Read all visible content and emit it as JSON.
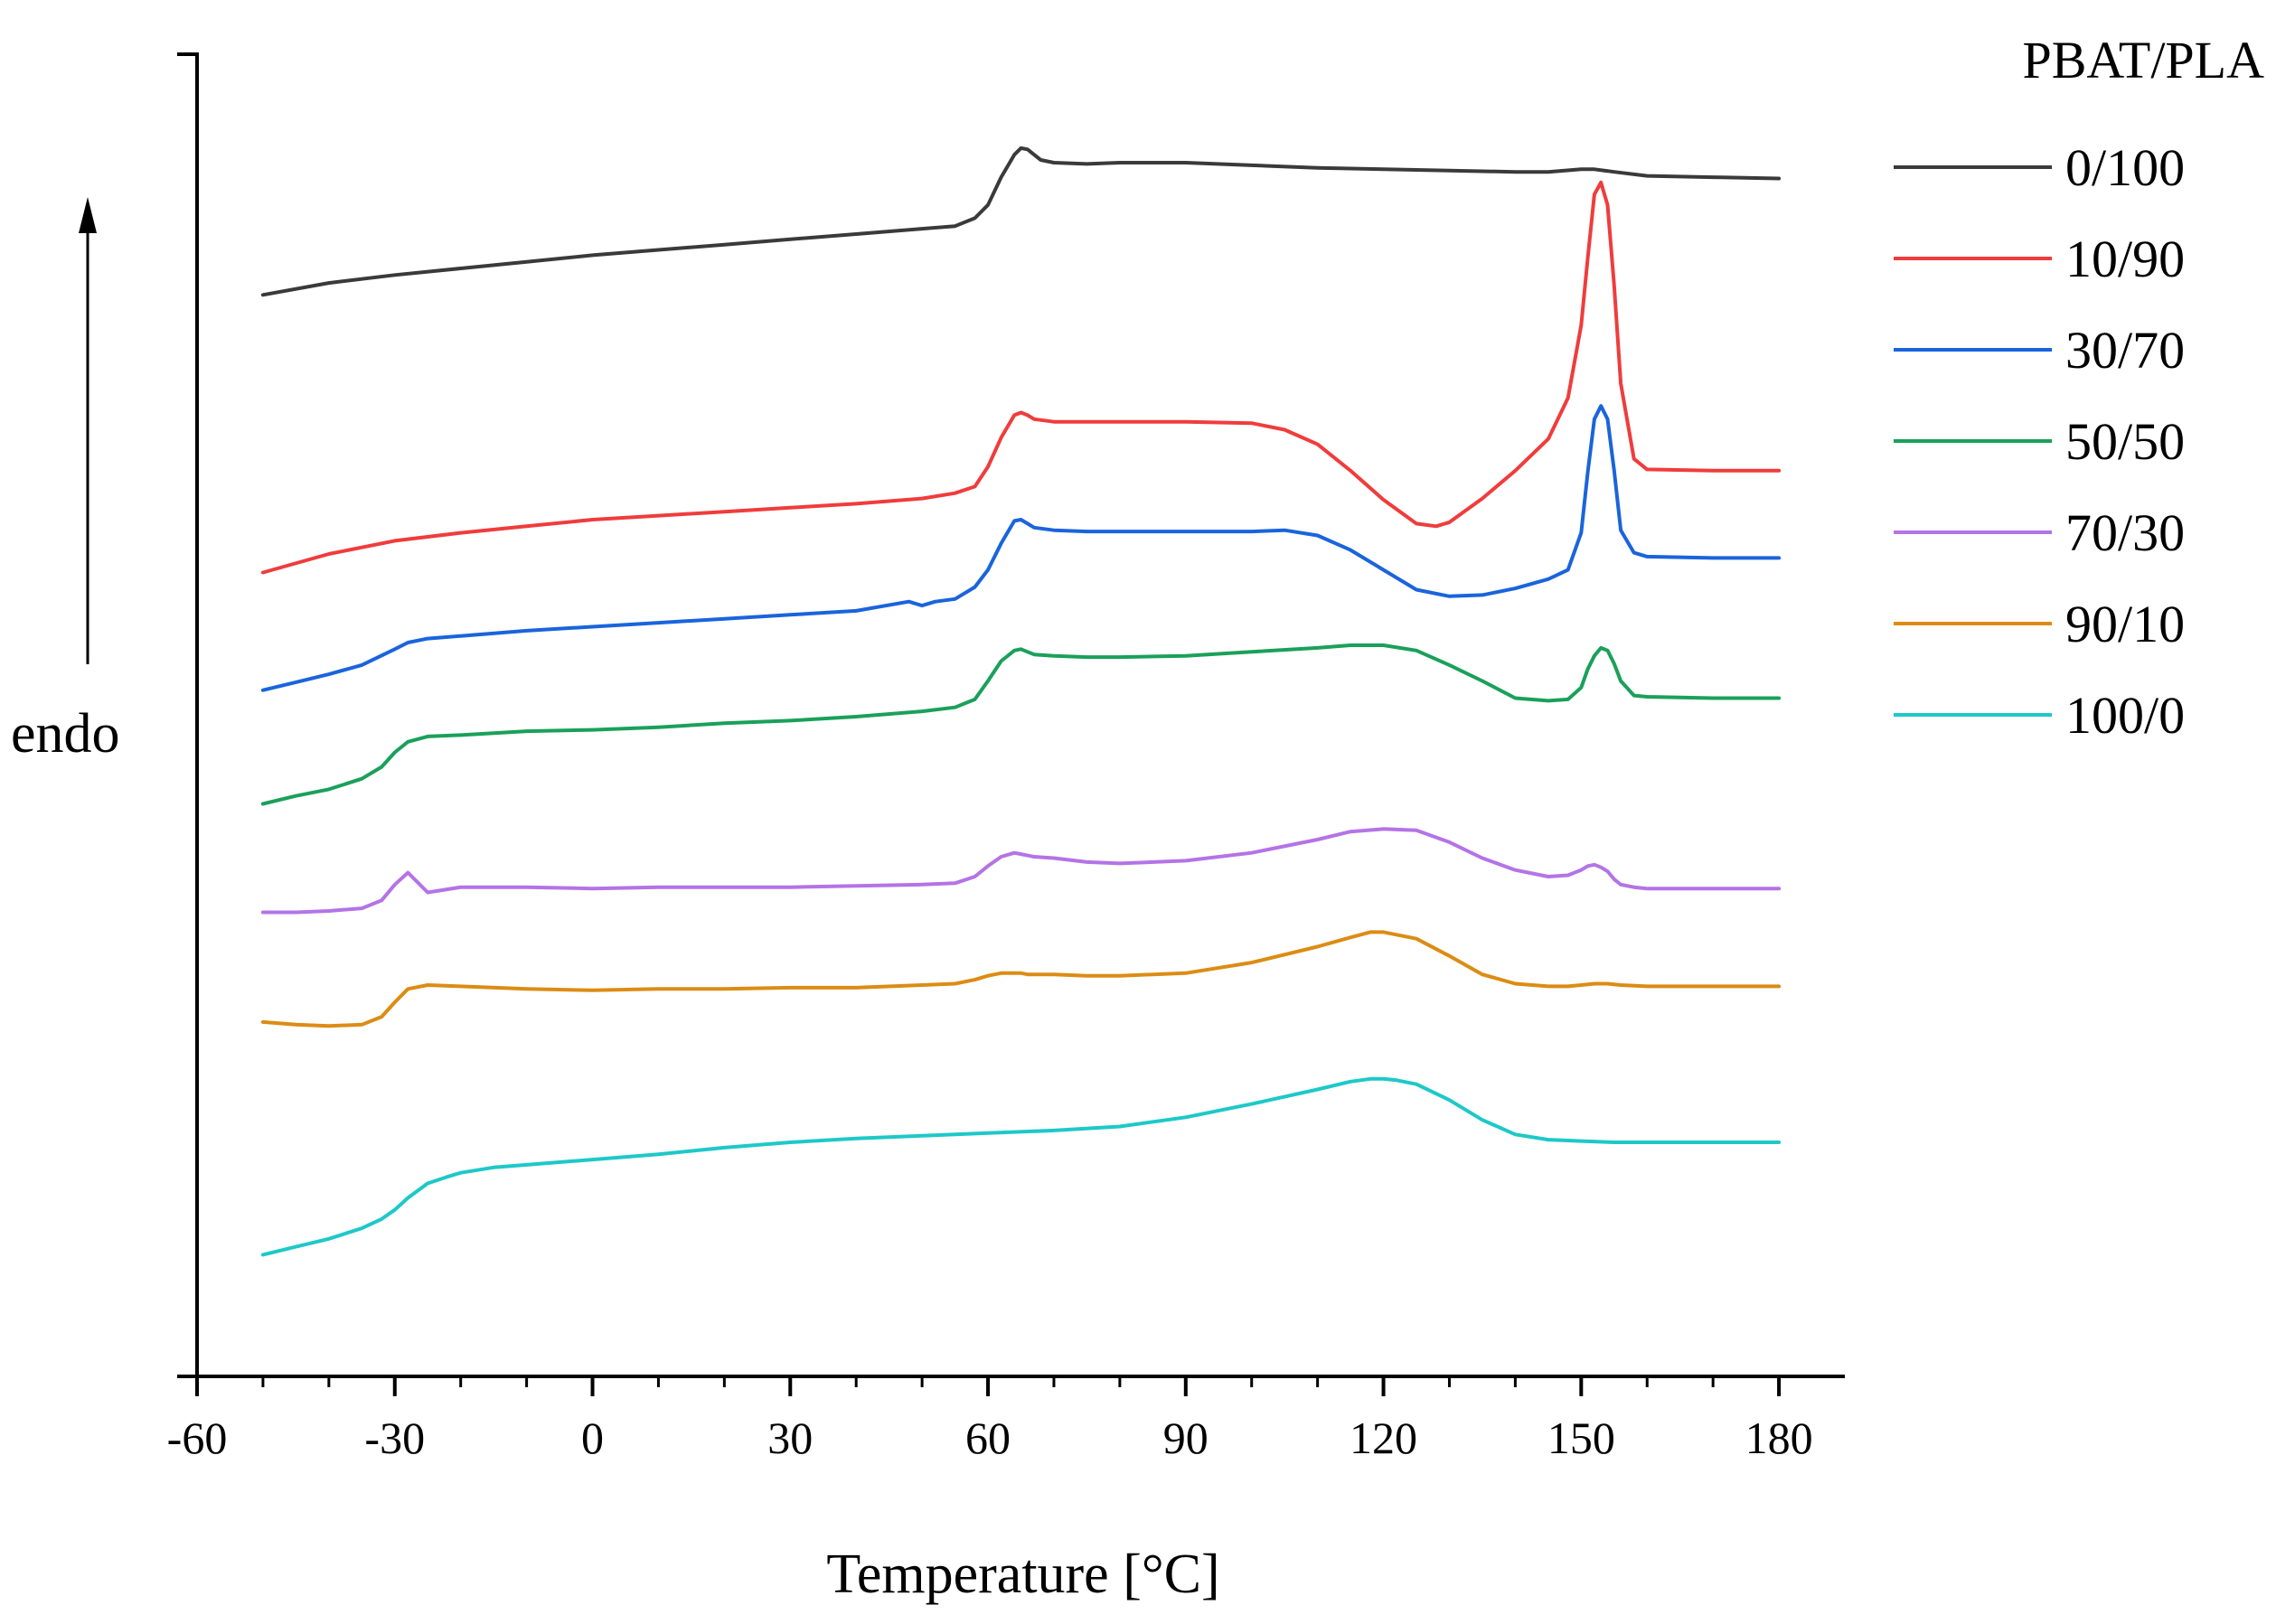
{
  "chart_data": {
    "type": "line",
    "title": "",
    "xlabel": "Temperature [°C]",
    "ylabel": "endo",
    "xlim": [
      -60,
      190
    ],
    "xticks": [
      -60,
      -30,
      0,
      30,
      60,
      90,
      120,
      150,
      180
    ],
    "ylim": [
      0,
      100
    ],
    "yticks_shown": false,
    "grid": false,
    "legend_title": "PBAT/PLA",
    "legend_position": "top-right",
    "series": [
      {
        "name": "0/100",
        "color": "#3a3a3a",
        "x": [
          -50,
          -40,
          -30,
          -20,
          -10,
          0,
          10,
          20,
          30,
          40,
          50,
          55,
          58,
          60,
          62,
          64,
          65,
          66,
          67,
          68,
          70,
          75,
          80,
          90,
          100,
          110,
          120,
          130,
          140,
          145,
          150,
          152,
          155,
          160,
          170,
          180
        ],
        "y": [
          81.8,
          82.7,
          83.3,
          83.8,
          84.3,
          84.8,
          85.2,
          85.6,
          86,
          86.4,
          86.8,
          87,
          87.6,
          88.6,
          90.7,
          92.4,
          92.9,
          92.8,
          92.4,
          92,
          91.8,
          91.7,
          91.8,
          91.8,
          91.6,
          91.4,
          91.3,
          91.2,
          91.1,
          91.1,
          91.3,
          91.3,
          91.1,
          90.8,
          90.7,
          90.6
        ]
      },
      {
        "name": "10/90",
        "color": "#f03c3c",
        "x": [
          -50,
          -40,
          -30,
          -20,
          -10,
          0,
          10,
          20,
          30,
          40,
          50,
          55,
          58,
          60,
          62,
          64,
          65,
          66,
          67,
          70,
          75,
          80,
          90,
          100,
          105,
          110,
          115,
          120,
          125,
          128,
          130,
          135,
          140,
          145,
          148,
          150,
          151,
          152,
          153,
          154,
          155,
          156,
          158,
          160,
          170,
          180
        ],
        "y": [
          60.8,
          62.2,
          63.2,
          63.8,
          64.3,
          64.8,
          65.1,
          65.4,
          65.7,
          66,
          66.4,
          66.8,
          67.3,
          68.8,
          71,
          72.7,
          72.9,
          72.7,
          72.4,
          72.2,
          72.2,
          72.2,
          72.2,
          72.1,
          71.6,
          70.5,
          68.5,
          66.3,
          64.5,
          64.3,
          64.6,
          66.4,
          68.5,
          70.9,
          74,
          79.5,
          84.6,
          89.4,
          90.3,
          88.6,
          82.5,
          75.1,
          69.4,
          68.6,
          68.5,
          68.5
        ]
      },
      {
        "name": "30/70",
        "color": "#1a64dc",
        "x": [
          -50,
          -45,
          -40,
          -35,
          -30,
          -28,
          -25,
          -20,
          -10,
          0,
          10,
          20,
          30,
          40,
          48,
          50,
          52,
          55,
          58,
          60,
          62,
          64,
          65,
          66,
          67,
          70,
          75,
          80,
          90,
          100,
          105,
          110,
          115,
          120,
          125,
          130,
          135,
          140,
          145,
          148,
          150,
          151,
          152,
          153,
          154,
          155,
          156,
          158,
          160,
          170,
          180
        ],
        "y": [
          51.9,
          52.5,
          53.1,
          53.8,
          55,
          55.5,
          55.8,
          56,
          56.4,
          56.7,
          57,
          57.3,
          57.6,
          57.9,
          58.6,
          58.3,
          58.6,
          58.8,
          59.7,
          61,
          63,
          64.7,
          64.8,
          64.5,
          64.2,
          64,
          63.9,
          63.9,
          63.9,
          63.9,
          64,
          63.6,
          62.5,
          61,
          59.5,
          59,
          59.1,
          59.6,
          60.3,
          61,
          63.8,
          68.4,
          72.4,
          73.4,
          72.4,
          68.5,
          64,
          62.3,
          62,
          61.9,
          61.9
        ]
      },
      {
        "name": "50/50",
        "color": "#1aa05a",
        "x": [
          -50,
          -45,
          -40,
          -35,
          -32,
          -30,
          -28,
          -25,
          -20,
          -10,
          0,
          10,
          20,
          30,
          40,
          50,
          55,
          58,
          60,
          62,
          64,
          65,
          66,
          67,
          70,
          75,
          80,
          90,
          100,
          110,
          115,
          120,
          125,
          130,
          135,
          140,
          145,
          148,
          150,
          151,
          152,
          153,
          154,
          155,
          156,
          158,
          160,
          170,
          180
        ],
        "y": [
          43.3,
          43.9,
          44.4,
          45.2,
          46.1,
          47.2,
          48,
          48.4,
          48.5,
          48.8,
          48.9,
          49.1,
          49.4,
          49.6,
          49.9,
          50.3,
          50.6,
          51.2,
          52.6,
          54.1,
          54.9,
          55,
          54.8,
          54.6,
          54.5,
          54.4,
          54.4,
          54.5,
          54.8,
          55.1,
          55.3,
          55.3,
          54.9,
          53.8,
          52.6,
          51.3,
          51.1,
          51.2,
          52.1,
          53.5,
          54.5,
          55.1,
          54.9,
          53.9,
          52.6,
          51.5,
          51.4,
          51.3,
          51.3
        ]
      },
      {
        "name": "70/30",
        "color": "#b473e6",
        "x": [
          -50,
          -45,
          -40,
          -35,
          -32,
          -30,
          -28,
          -25,
          -20,
          -10,
          0,
          10,
          20,
          30,
          40,
          50,
          55,
          58,
          60,
          62,
          64,
          65,
          66,
          67,
          70,
          75,
          80,
          90,
          100,
          110,
          115,
          120,
          125,
          130,
          135,
          140,
          145,
          148,
          150,
          151,
          152,
          153,
          154,
          155,
          156,
          158,
          160,
          170,
          180
        ],
        "y": [
          35.1,
          35.1,
          35.2,
          35.4,
          36,
          37.2,
          38.1,
          36.6,
          37,
          37,
          36.9,
          37,
          37,
          37,
          37.1,
          37.2,
          37.3,
          37.8,
          38.6,
          39.3,
          39.6,
          39.5,
          39.4,
          39.3,
          39.2,
          38.9,
          38.8,
          39,
          39.6,
          40.6,
          41.2,
          41.4,
          41.3,
          40.4,
          39.2,
          38.3,
          37.8,
          37.9,
          38.3,
          38.6,
          38.7,
          38.5,
          38.2,
          37.6,
          37.2,
          37,
          36.9,
          36.9,
          36.9
        ]
      },
      {
        "name": "90/10",
        "color": "#dc8c14",
        "x": [
          -50,
          -45,
          -40,
          -35,
          -32,
          -30,
          -28,
          -25,
          -20,
          -10,
          0,
          10,
          20,
          30,
          40,
          50,
          55,
          58,
          60,
          62,
          64,
          65,
          66,
          67,
          70,
          75,
          80,
          90,
          100,
          110,
          115,
          118,
          120,
          125,
          130,
          135,
          140,
          145,
          148,
          150,
          152,
          154,
          156,
          160,
          170,
          180
        ],
        "y": [
          26.8,
          26.6,
          26.5,
          26.6,
          27.2,
          28.3,
          29.3,
          29.6,
          29.5,
          29.3,
          29.2,
          29.3,
          29.3,
          29.4,
          29.4,
          29.6,
          29.7,
          30,
          30.3,
          30.5,
          30.5,
          30.5,
          30.4,
          30.4,
          30.4,
          30.3,
          30.3,
          30.5,
          31.3,
          32.5,
          33.2,
          33.6,
          33.6,
          33.1,
          31.8,
          30.4,
          29.7,
          29.5,
          29.5,
          29.6,
          29.7,
          29.7,
          29.6,
          29.5,
          29.5,
          29.5
        ]
      },
      {
        "name": "100/0",
        "color": "#1ec8c8",
        "x": [
          -50,
          -45,
          -40,
          -35,
          -32,
          -30,
          -28,
          -25,
          -22,
          -20,
          -15,
          -10,
          0,
          10,
          20,
          30,
          40,
          50,
          60,
          70,
          80,
          90,
          100,
          110,
          115,
          118,
          120,
          122,
          125,
          130,
          135,
          140,
          145,
          150,
          155,
          160,
          170,
          180
        ],
        "y": [
          9.2,
          9.8,
          10.4,
          11.2,
          11.9,
          12.6,
          13.5,
          14.6,
          15.1,
          15.4,
          15.8,
          16,
          16.4,
          16.8,
          17.3,
          17.7,
          18,
          18.2,
          18.4,
          18.6,
          18.9,
          19.6,
          20.6,
          21.7,
          22.3,
          22.5,
          22.5,
          22.4,
          22.1,
          20.9,
          19.4,
          18.3,
          17.9,
          17.8,
          17.7,
          17.7,
          17.7,
          17.7
        ]
      }
    ]
  }
}
